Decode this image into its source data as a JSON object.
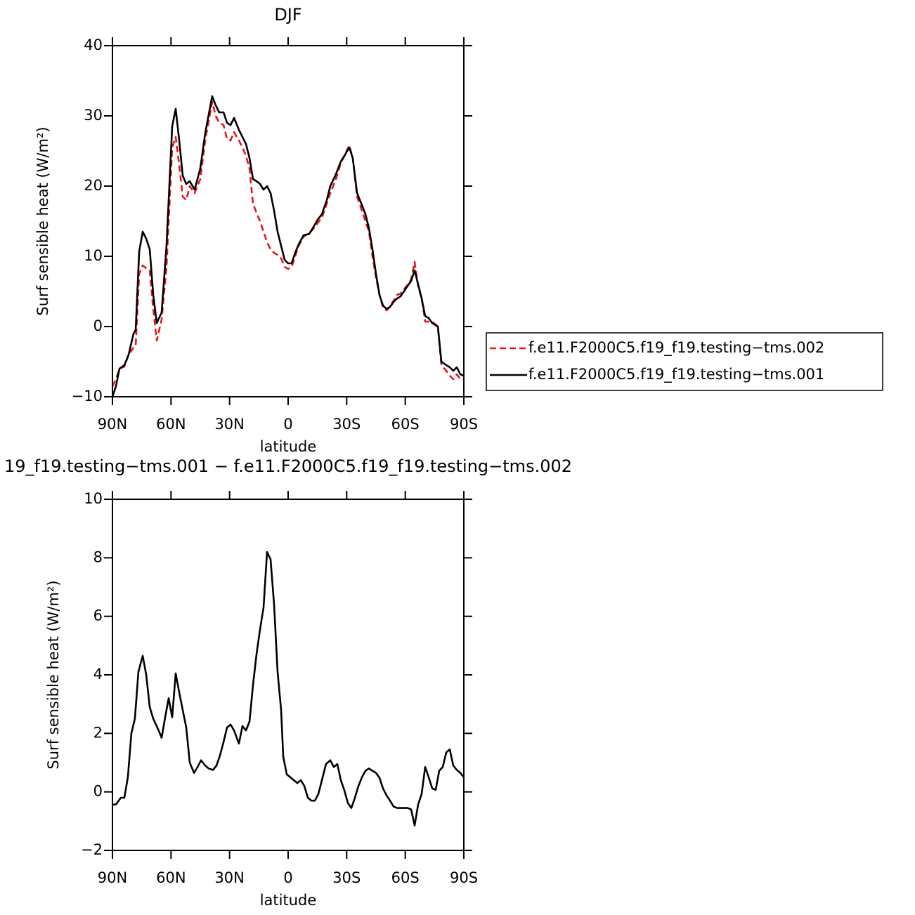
{
  "chart_data": [
    {
      "type": "line",
      "title": "DJF",
      "x_label": "latitude",
      "y_label": "Surf sensible heat (W/m²)",
      "x": [
        90,
        88.2,
        86.4,
        83.9,
        81.7,
        79.2,
        78.1,
        76.3,
        74.5,
        72.7,
        70.9,
        69.1,
        67.3,
        64.8,
        62.3,
        59.4,
        57.6,
        55.8,
        54,
        52.2,
        50.4,
        47.9,
        45,
        42.5,
        38.9,
        37.1,
        35.3,
        33.1,
        31.3,
        29.5,
        27.7,
        25.2,
        23.4,
        21.6,
        19.8,
        18,
        16.2,
        14.4,
        12.6,
        10.8,
        9,
        7.2,
        5.4,
        3.6,
        1.8,
        0,
        -1.8,
        -3.6,
        -5.4,
        -7.9,
        -10.8,
        -12.6,
        -15.1,
        -17.3,
        -19.8,
        -21.6,
        -24.5,
        -27,
        -28.8,
        -31.3,
        -33.1,
        -35.3,
        -37.8,
        -39.6,
        -41.4,
        -43.2,
        -45,
        -46.8,
        -48.6,
        -50.4,
        -52.2,
        -54,
        -55.8,
        -57.6,
        -60.5,
        -63,
        -64.8,
        -66.6,
        -68.4,
        -70.2,
        -72,
        -73.8,
        -76.7,
        -78.5,
        -81,
        -82.8,
        -84.6,
        -86.4,
        -88.2,
        -90
      ],
      "series": [
        {
          "name": "f.e11.F2000C5.f19_f19.testing−tms.002",
          "color": "#e8141c",
          "dashed": true,
          "values": [
            -8.5,
            -7.5,
            -6,
            -5.7,
            -4,
            -3,
            -2.7,
            7.5,
            8.7,
            8.3,
            8,
            2.5,
            -2,
            1,
            8.5,
            25.5,
            27,
            23,
            18.5,
            18,
            20,
            19,
            21,
            26.5,
            32,
            30,
            29,
            28.7,
            26.7,
            26.5,
            27.7,
            26.5,
            25.5,
            24.3,
            22.5,
            17.5,
            16.2,
            15,
            13.5,
            12,
            11,
            10.5,
            10.2,
            9.7,
            8.5,
            8.2,
            8.5,
            10,
            11.5,
            12.8,
            13.3,
            13.8,
            14.7,
            15.5,
            17.5,
            19,
            21,
            23.3,
            24.3,
            25.8,
            24,
            18.5,
            16.5,
            15,
            13.5,
            10,
            7,
            4.5,
            2.7,
            2.3,
            2.8,
            3.7,
            4.5,
            4.7,
            5.7,
            6.7,
            9.2,
            5.7,
            4,
            0.7,
            0.7,
            0.7,
            0,
            -5.5,
            -6.3,
            -7,
            -7.5,
            -6.8,
            -7.5,
            -7.5
          ]
        },
        {
          "name": "f.e11.F2000C5.f19_f19.testing−tms.001",
          "color": "#000000",
          "dashed": false,
          "values": [
            -10,
            -8.5,
            -6,
            -5.5,
            -4,
            -1,
            -0.5,
            10.7,
            13.5,
            12.5,
            11,
            4.5,
            0.5,
            2,
            11.5,
            28.5,
            31,
            26.5,
            21.5,
            20.3,
            20.7,
            19.5,
            22.5,
            27.5,
            32.8,
            31.5,
            30.5,
            30.5,
            29,
            28.7,
            29.7,
            28,
            27,
            26,
            24,
            21,
            20.7,
            20.3,
            19.5,
            20,
            19,
            16.5,
            13.5,
            11.5,
            9.5,
            9,
            9,
            10.5,
            11.7,
            13,
            13.2,
            14,
            15.2,
            16,
            18,
            20,
            21.7,
            23.5,
            24.3,
            25.5,
            24,
            19,
            17.3,
            16,
            14,
            11,
            7.5,
            4.5,
            3,
            2.5,
            2.8,
            3.5,
            4,
            4.3,
            5.5,
            6.5,
            8,
            6,
            4,
            1.5,
            1.2,
            0.5,
            0,
            -5,
            -5.5,
            -5.8,
            -6.3,
            -5.8,
            -6.8,
            -7
          ]
        }
      ],
      "xlim": [
        90,
        -90
      ],
      "xticks": [
        {
          "value": 90,
          "label": "90N"
        },
        {
          "value": 60,
          "label": "60N"
        },
        {
          "value": 30,
          "label": "30N"
        },
        0,
        {
          "value": -30,
          "label": "30S"
        },
        {
          "value": -60,
          "label": "60S"
        },
        {
          "value": -90,
          "label": "90S"
        }
      ],
      "ylim": [
        -10,
        40
      ],
      "yticks": [
        {
          "value": -10,
          "label": "−10"
        },
        0,
        10,
        20,
        30,
        40
      ],
      "legend": "right"
    },
    {
      "type": "line",
      "title": "19_f19.testing−tms.001 − f.e11.F2000C5.f19_f19.testing−tms.002",
      "x_label": "latitude",
      "y_label": "Surf sensible heat (W/m²)",
      "x": [
        90,
        88.2,
        85.7,
        83.9,
        82.1,
        80.3,
        78.5,
        76.7,
        74.5,
        72.7,
        70.9,
        69.1,
        67,
        64.8,
        63,
        61.2,
        59.4,
        57.6,
        55.8,
        54,
        52.2,
        50.4,
        48.2,
        46.4,
        44.6,
        42.5,
        40.7,
        38.5,
        36.7,
        34.9,
        33.1,
        31.3,
        29.5,
        27.7,
        25.2,
        23.4,
        21.6,
        19.8,
        18,
        16.2,
        14.4,
        12.6,
        10.8,
        9,
        7.2,
        5.4,
        3.6,
        2.5,
        0.7,
        -1.1,
        -2.9,
        -4.7,
        -6.5,
        -8.3,
        -10.1,
        -11.9,
        -13.7,
        -15.5,
        -17.3,
        -19.4,
        -21.6,
        -23.4,
        -25.2,
        -27,
        -28.8,
        -30.6,
        -32.4,
        -34.2,
        -36,
        -37.8,
        -39.6,
        -41.4,
        -43.2,
        -45,
        -46.8,
        -48.6,
        -50.4,
        -52.2,
        -54,
        -55.8,
        -57.6,
        -59.4,
        -61.2,
        -63,
        -64.8,
        -66.6,
        -68.4,
        -70.2,
        -72,
        -73.8,
        -75.6,
        -77.4,
        -79.2,
        -81,
        -82.8,
        -84.6,
        -86.4,
        -88.2,
        -90
      ],
      "series": [
        {
          "color": "#000000",
          "dashed": false,
          "values": [
            -0.43,
            -0.43,
            -0.2,
            -0.2,
            0.5,
            2,
            2.5,
            4.1,
            4.65,
            4,
            2.9,
            2.5,
            2.2,
            1.85,
            2.55,
            3.2,
            2.55,
            4.05,
            3.4,
            2.8,
            2.2,
            1,
            0.65,
            0.85,
            1.08,
            0.9,
            0.8,
            0.75,
            0.9,
            1.25,
            1.7,
            2.2,
            2.3,
            2.1,
            1.65,
            2.25,
            2.1,
            2.4,
            3.65,
            4.7,
            5.55,
            6.3,
            8.2,
            7.95,
            6.4,
            4.1,
            2.8,
            1.2,
            0.6,
            0.5,
            0.4,
            0.3,
            0.4,
            0.2,
            -0.2,
            -0.3,
            -0.3,
            -0.07,
            0.4,
            0.95,
            1.08,
            0.85,
            0.95,
            0.4,
            0.05,
            -0.38,
            -0.55,
            -0.2,
            0.2,
            0.5,
            0.72,
            0.8,
            0.72,
            0.65,
            0.48,
            0.12,
            -0.12,
            -0.3,
            -0.5,
            -0.55,
            -0.55,
            -0.55,
            -0.55,
            -0.6,
            -1.15,
            -0.43,
            -0.07,
            0.85,
            0.5,
            0.12,
            0.07,
            0.72,
            0.85,
            1.35,
            1.45,
            0.9,
            0.75,
            0.65,
            0.5
          ]
        }
      ],
      "xlim": [
        90,
        -90
      ],
      "xticks": [
        {
          "value": 90,
          "label": "90N"
        },
        {
          "value": 60,
          "label": "60N"
        },
        {
          "value": 30,
          "label": "30N"
        },
        0,
        {
          "value": -30,
          "label": "30S"
        },
        {
          "value": -60,
          "label": "60S"
        },
        {
          "value": -90,
          "label": "90S"
        }
      ],
      "ylim": [
        -2,
        10
      ],
      "yticks": [
        {
          "value": -2,
          "label": "−2"
        },
        0,
        2,
        4,
        6,
        8,
        10
      ]
    }
  ]
}
